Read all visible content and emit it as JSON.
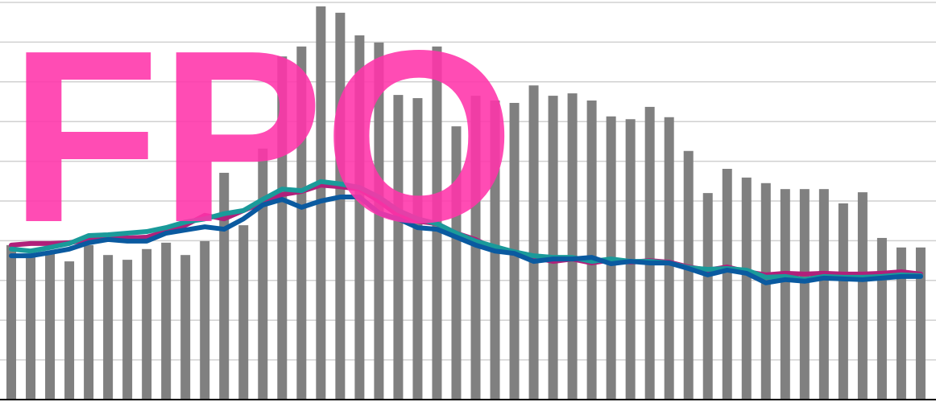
{
  "chart_data": {
    "type": "bar",
    "annotation": "FPO",
    "annotation_color": "#ff33aa",
    "ylim": [
      0,
      100
    ],
    "yticks": [
      0,
      10,
      20,
      30,
      40,
      50,
      60,
      70,
      80,
      90,
      100
    ],
    "grid": true,
    "series": [
      {
        "type": "bar",
        "color": "#808080",
        "values": [
          38.9,
          35.8,
          36.8,
          34.8,
          38.9,
          36.4,
          35.2,
          37.9,
          39.5,
          36.4,
          39.9,
          57.1,
          43.9,
          63.2,
          86.4,
          88.9,
          99.0,
          97.4,
          91.7,
          89.9,
          76.7,
          75.9,
          88.9,
          68.8,
          76.5,
          75.3,
          74.7,
          79.1,
          76.5,
          77.1,
          75.3,
          71.3,
          70.6,
          73.7,
          71.1,
          62.6,
          52.0,
          58.1,
          55.9,
          54.5,
          53.0,
          53.0,
          53.0,
          49.4,
          52.2,
          40.7,
          38.3,
          38.3
        ]
      },
      {
        "type": "line",
        "color": "#b0207a",
        "values": [
          38.9,
          39.3,
          39.3,
          39.5,
          40.3,
          40.7,
          40.7,
          40.9,
          42.3,
          43.9,
          46.4,
          45.5,
          47.6,
          49.6,
          51.6,
          52.4,
          54.0,
          53.6,
          53.0,
          50.0,
          46.4,
          44.9,
          44.3,
          41.9,
          40.3,
          37.9,
          36.8,
          35.8,
          34.8,
          35.4,
          34.4,
          35.2,
          34.6,
          35.0,
          34.6,
          33.4,
          32.6,
          33.4,
          32.2,
          31.4,
          31.8,
          31.6,
          31.8,
          31.6,
          31.6,
          31.8,
          32.2,
          31.6
        ]
      },
      {
        "type": "line",
        "color": "#1a9a9a",
        "values": [
          37.9,
          37.4,
          38.3,
          39.3,
          41.3,
          41.5,
          41.9,
          42.3,
          43.3,
          44.7,
          45.5,
          46.8,
          47.6,
          50.4,
          53.0,
          52.6,
          54.9,
          54.3,
          53.4,
          51.0,
          47.6,
          45.5,
          44.3,
          41.9,
          39.9,
          38.5,
          37.2,
          36.2,
          35.8,
          35.8,
          34.8,
          35.4,
          34.8,
          34.8,
          34.4,
          33.2,
          32.8,
          33.0,
          32.6,
          30.8,
          31.0,
          30.2,
          31.0,
          30.8,
          30.8,
          31.0,
          31.4,
          31.2
        ]
      },
      {
        "type": "line",
        "color": "#0a5aa0",
        "values": [
          36.2,
          36.2,
          37.0,
          37.9,
          39.5,
          40.3,
          39.9,
          39.9,
          41.9,
          42.7,
          43.5,
          42.9,
          45.5,
          49.0,
          50.4,
          48.4,
          50.0,
          51.0,
          51.0,
          47.0,
          45.5,
          43.3,
          42.9,
          40.9,
          38.9,
          37.4,
          36.8,
          34.8,
          35.4,
          35.4,
          35.8,
          34.2,
          34.8,
          34.4,
          34.4,
          33.0,
          31.4,
          32.6,
          31.8,
          29.4,
          30.2,
          29.8,
          30.6,
          30.4,
          30.2,
          30.6,
          31.0,
          31.0
        ]
      }
    ]
  }
}
